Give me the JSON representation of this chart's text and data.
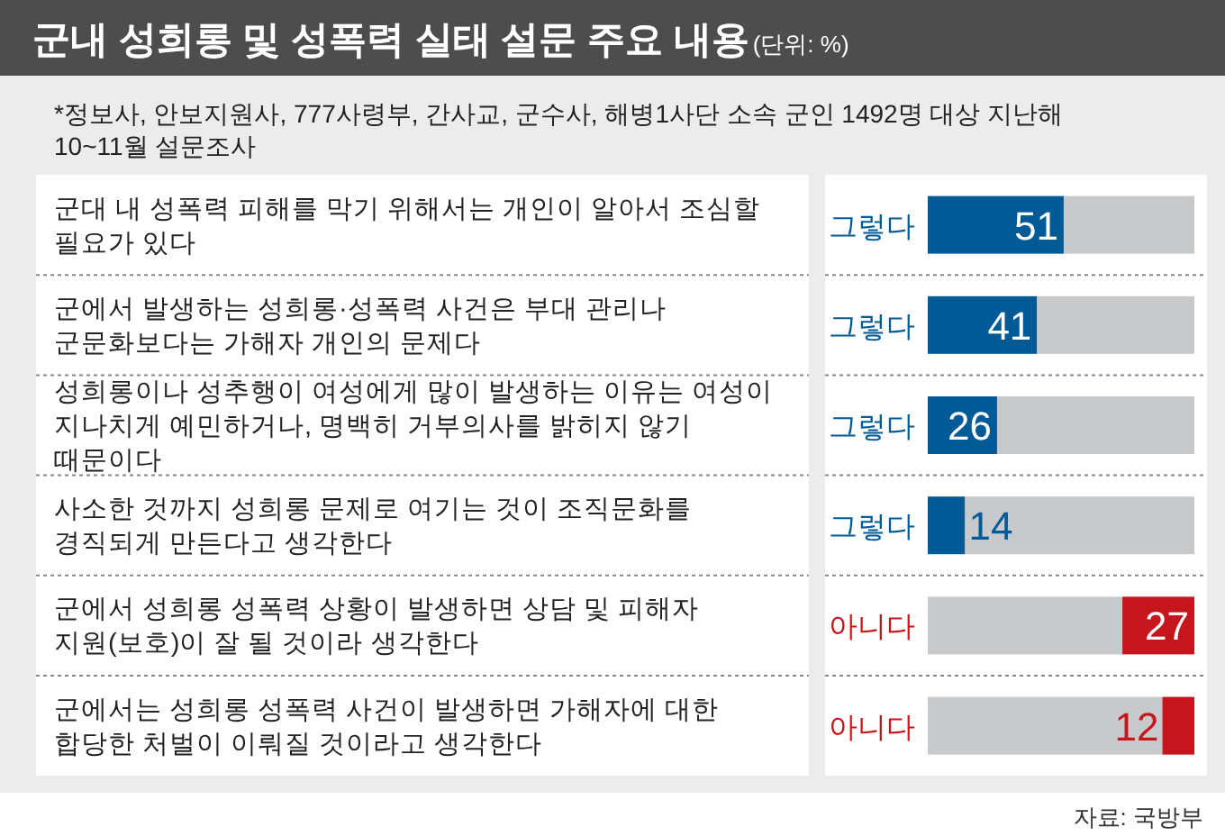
{
  "chart_data": {
    "type": "bar",
    "orientation": "horizontal",
    "stacked": true,
    "title": "군내 성희롱 및 성폭력 실태 설문 주요 내용",
    "subtitle": "(단위: %)",
    "annotations": [
      "*정보사, 안보지원사, 777사령부, 간사교, 군수사, 해병1사단 소속 군인 1492명 대상 지난해 10~11월 설문조사",
      "자료: 국방부"
    ],
    "categories": [
      "군대 내 성폭력 피해를 막기 위해서는 개인이 알아서 조심할 필요가 있다",
      "군에서 발생하는 성희롱·성폭력 사건은 부대 관리나 군문화보다는 가해자 개인의 문제다",
      "성희롱이나 성추행이 여성에게 많이 발생하는 이유는 여성이 지나치게 예민하거나, 명백히 거부의사를 밝히지 않기 때문이다",
      "사소한 것까지 성희롱 문제로 여기는 것이 조직문화를 경직되게 만든다고 생각한다",
      "군에서 성희롱 성폭력 상황이 발생하면 상담 및 피해자 지원(보호)이 잘 될 것이라 생각한다",
      "군에서는 성희롱 성폭력 사건이 발생하면 가해자에 대한 합당한 처벌이 이뤄질 것이라고 생각한다"
    ],
    "series": [
      {
        "name": "그렇다",
        "color": "#005a96",
        "values": [
          51,
          41,
          26,
          14,
          null,
          null
        ],
        "value_labels": [
          "51",
          "41",
          "26",
          "14",
          null,
          null
        ]
      },
      {
        "color": "#c8c9ca",
        "values": [
          49,
          59,
          74,
          86,
          73,
          88
        ],
        "value_labels": [
          null,
          null,
          null,
          null,
          null,
          null
        ]
      },
      {
        "name": "아니다",
        "color": "#c4161c",
        "values": [
          null,
          null,
          null,
          null,
          27,
          12
        ],
        "value_labels": [
          null,
          null,
          null,
          null,
          "27",
          "12"
        ]
      }
    ],
    "xlim": [
      0,
      100
    ],
    "tick_labels": "y",
    "grid": false,
    "legend": false
  }
}
